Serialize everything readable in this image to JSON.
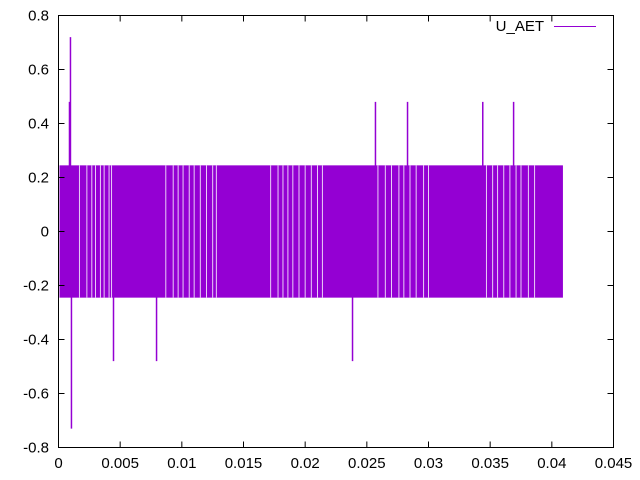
{
  "chart_data": {
    "type": "line",
    "title": "",
    "xlabel": "",
    "ylabel": "",
    "xlim": [
      0,
      0.045
    ],
    "ylim": [
      -0.8,
      0.8
    ],
    "xticks": [
      0,
      0.005,
      0.01,
      0.015,
      0.02,
      0.025,
      0.03,
      0.035,
      0.04,
      0.045
    ],
    "xtick_labels": [
      "0",
      "0.005",
      "0.01",
      "0.015",
      "0.02",
      "0.025",
      "0.03",
      "0.035",
      "0.04",
      "0.045"
    ],
    "yticks": [
      -0.8,
      -0.6,
      -0.4,
      -0.2,
      0,
      0.2,
      0.4,
      0.6,
      0.8
    ],
    "ytick_labels": [
      "-0.8",
      "-0.6",
      "-0.4",
      "-0.2",
      "0",
      "0.2",
      "0.4",
      "0.6",
      "0.8"
    ],
    "grid": false,
    "legend_position": "top-right",
    "series": [
      {
        "name": "U_AET",
        "color": "#9400d3",
        "oscillation_band": {
          "x_start": 0,
          "x_end": 0.0409,
          "ymin": -0.245,
          "ymax": 0.245
        },
        "spikes": [
          {
            "x": 0.00089,
            "y": 0.48
          },
          {
            "x": 0.00097,
            "y": 0.72
          },
          {
            "x": 0.00105,
            "y": -0.73
          },
          {
            "x": 0.00446,
            "y": -0.48
          },
          {
            "x": 0.00795,
            "y": -0.48
          },
          {
            "x": 0.02384,
            "y": -0.48
          },
          {
            "x": 0.0257,
            "y": 0.48
          },
          {
            "x": 0.0283,
            "y": 0.48
          },
          {
            "x": 0.0344,
            "y": 0.48
          },
          {
            "x": 0.0369,
            "y": 0.48
          }
        ],
        "gaps_x": [
          0.0017,
          0.0023,
          0.0027,
          0.003,
          0.0034,
          0.0037,
          0.0041,
          0.0043,
          0.0087,
          0.0093,
          0.0097,
          0.0101,
          0.0106,
          0.011,
          0.0115,
          0.012,
          0.0125,
          0.0128,
          0.0172,
          0.0178,
          0.0182,
          0.0186,
          0.019,
          0.0195,
          0.02,
          0.0205,
          0.021,
          0.0214,
          0.0259,
          0.0265,
          0.027,
          0.0276,
          0.028,
          0.0285,
          0.029,
          0.0296,
          0.03,
          0.0347,
          0.0352,
          0.0356,
          0.0361,
          0.0366,
          0.0371,
          0.0375,
          0.0381,
          0.0386
        ]
      }
    ]
  }
}
